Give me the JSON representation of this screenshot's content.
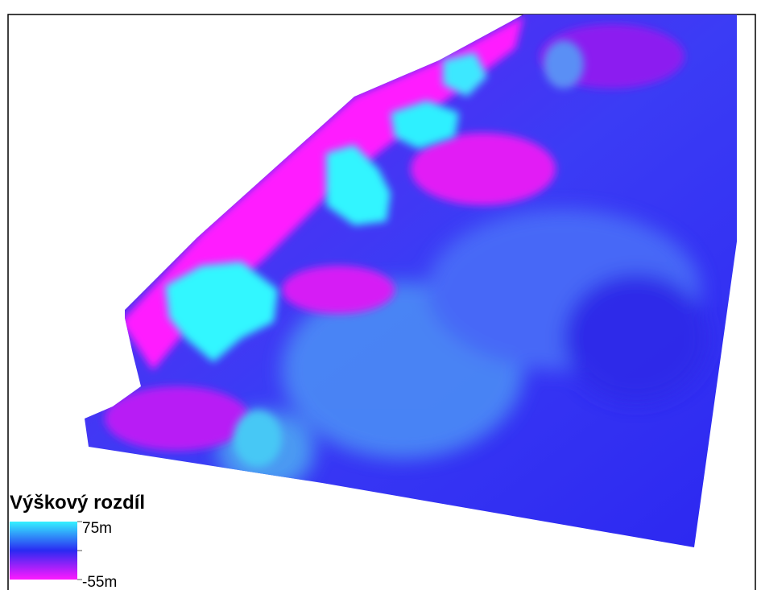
{
  "legend": {
    "title": "Výškový rozdíl",
    "max_label": "75m",
    "min_label": "-55m"
  }
}
